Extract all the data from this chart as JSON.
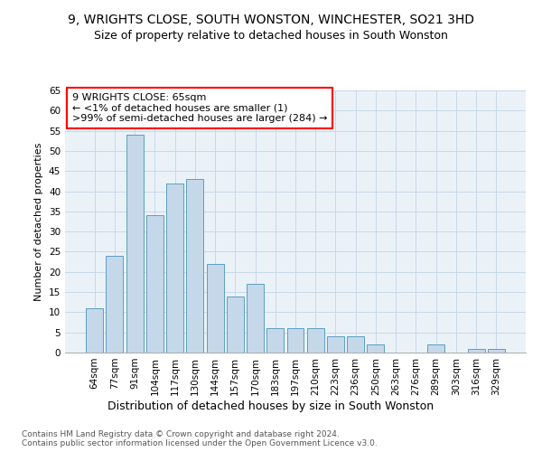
{
  "title1": "9, WRIGHTS CLOSE, SOUTH WONSTON, WINCHESTER, SO21 3HD",
  "title2": "Size of property relative to detached houses in South Wonston",
  "xlabel": "Distribution of detached houses by size in South Wonston",
  "ylabel": "Number of detached properties",
  "categories": [
    "64sqm",
    "77sqm",
    "91sqm",
    "104sqm",
    "117sqm",
    "130sqm",
    "144sqm",
    "157sqm",
    "170sqm",
    "183sqm",
    "197sqm",
    "210sqm",
    "223sqm",
    "236sqm",
    "250sqm",
    "263sqm",
    "276sqm",
    "289sqm",
    "303sqm",
    "316sqm",
    "329sqm"
  ],
  "values": [
    11,
    24,
    54,
    34,
    42,
    43,
    22,
    14,
    17,
    6,
    6,
    6,
    4,
    4,
    2,
    0,
    0,
    2,
    0,
    1,
    1
  ],
  "bar_color": "#c5d8ea",
  "bar_edge_color": "#5a9fc0",
  "annotation_line1": "9 WRIGHTS CLOSE: 65sqm",
  "annotation_line2": "← <1% of detached houses are smaller (1)",
  "annotation_line3": ">99% of semi-detached houses are larger (284) →",
  "annotation_box_color": "white",
  "annotation_box_edge_color": "red",
  "ylim": [
    0,
    65
  ],
  "yticks": [
    0,
    5,
    10,
    15,
    20,
    25,
    30,
    35,
    40,
    45,
    50,
    55,
    60,
    65
  ],
  "grid_color": "#c8d8e8",
  "bg_color": "#eaf2f8",
  "footer": "Contains HM Land Registry data © Crown copyright and database right 2024.\nContains public sector information licensed under the Open Government Licence v3.0.",
  "title1_fontsize": 10,
  "title2_fontsize": 9,
  "xlabel_fontsize": 9,
  "ylabel_fontsize": 8,
  "tick_fontsize": 7.5,
  "annotation_fontsize": 8,
  "footer_fontsize": 6.5
}
